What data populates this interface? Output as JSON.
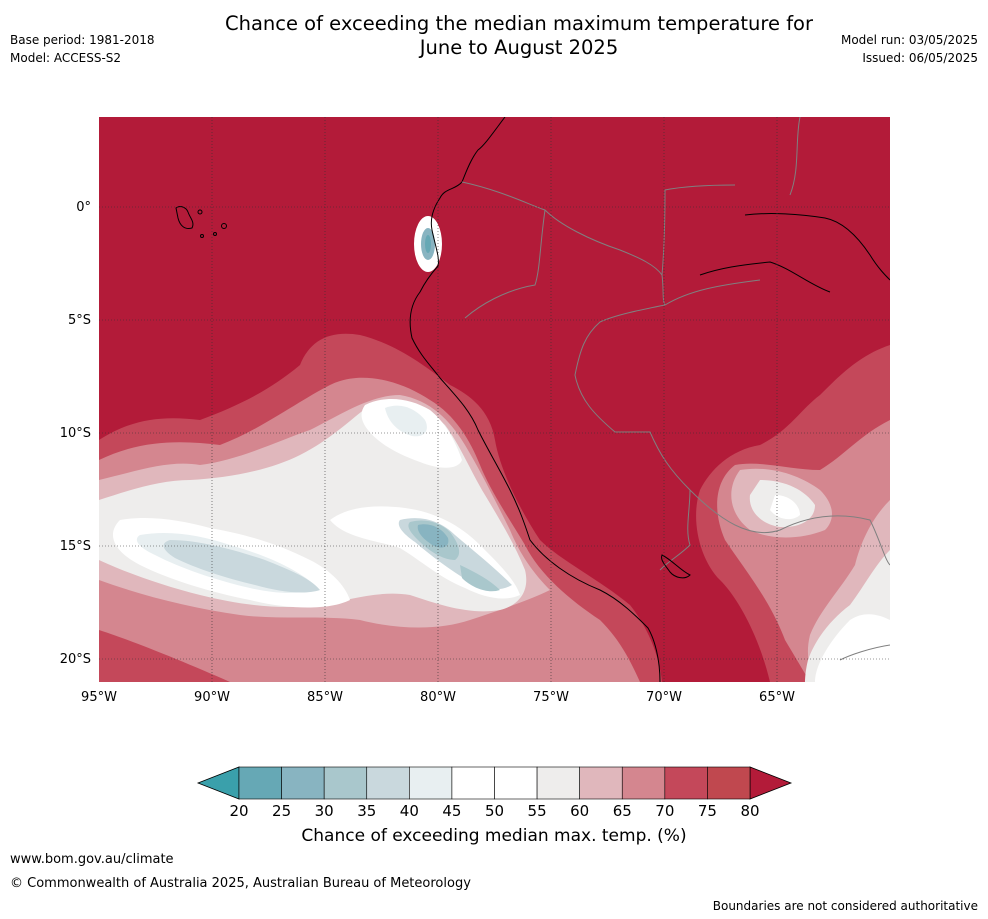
{
  "title_line1": "Chance of exceeding the median maximum temperature for",
  "title_line2": "June to August 2025",
  "base_period": "Base period: 1981-2018",
  "model": "Model: ACCESS-S2",
  "model_run": "Model run: 03/05/2025",
  "issued": "Issued: 06/05/2025",
  "map": {
    "lon_labels": [
      "95°W",
      "90°W",
      "85°W",
      "80°W",
      "75°W",
      "70°W",
      "65°W"
    ],
    "lat_labels": [
      "0°",
      "5°S",
      "10°S",
      "15°S",
      "20°S"
    ],
    "colors": {
      "land_sea_high": "#b31b39",
      "c75": "#c4485a",
      "c70": "#d4868f",
      "c65": "#e0b7bc",
      "c60": "#eeedec",
      "c50": "#ffffff",
      "c45": "#e8eff1",
      "c35": "#c9d8dd",
      "c30": "#a9c7cc",
      "c25": "#88b4c1",
      "c20": "#66a8b5",
      "coastline": "#000000",
      "borders": "#808080"
    }
  },
  "colorbar": {
    "ticks": [
      "20",
      "25",
      "30",
      "35",
      "40",
      "45",
      "50",
      "55",
      "60",
      "65",
      "70",
      "75",
      "80"
    ],
    "colors": [
      "#66a8b5",
      "#88b4c1",
      "#a9c7cc",
      "#c9d8dd",
      "#e8eff1",
      "#ffffff",
      "#ffffff",
      "#eeedec",
      "#e0b7bc",
      "#d4868f",
      "#c4485a",
      "#c0484f"
    ],
    "low_color": "#3aa0ab",
    "high_color": "#b31b39",
    "label": "Chance of exceeding median max. temp. (%)"
  },
  "footer": {
    "url": "www.bom.gov.au/climate",
    "copyright": "© Commonwealth of Australia 2025, Australian Bureau of Meteorology",
    "disclaimer": "Boundaries are not considered authoritative"
  }
}
